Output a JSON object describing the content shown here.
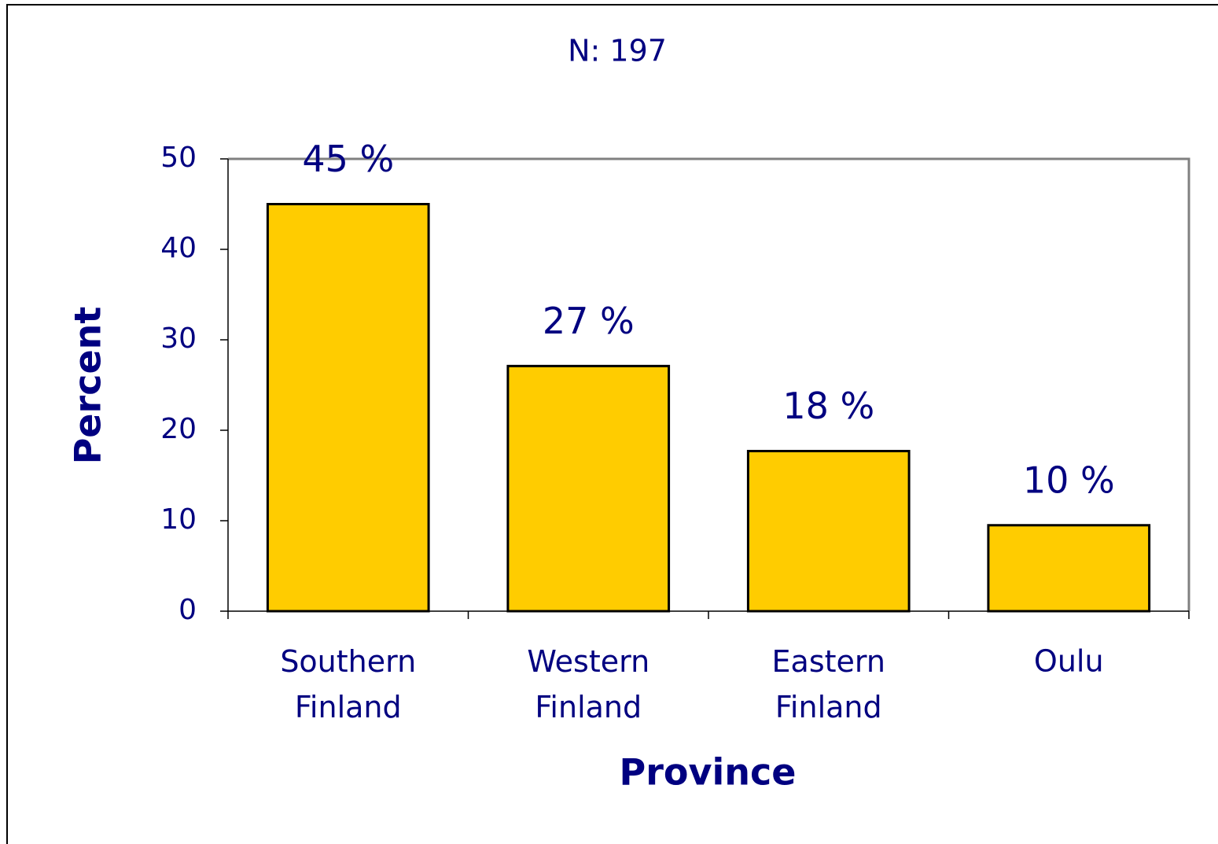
{
  "chart_data": {
    "type": "bar",
    "title": "N: 197",
    "x_label": "Province",
    "y_label": "Percent",
    "categories": [
      "Southern Finland",
      "Western Finland",
      "Eastern Finland",
      "Oulu"
    ],
    "values": [
      45,
      27.1,
      17.7,
      9.5
    ],
    "value_labels": [
      "45 %",
      "27 %",
      "18 %",
      "10 %"
    ],
    "color": "#ffcc00",
    "ylim": [
      0,
      50
    ],
    "yticks": [
      0,
      10,
      20,
      30,
      40,
      50
    ]
  }
}
